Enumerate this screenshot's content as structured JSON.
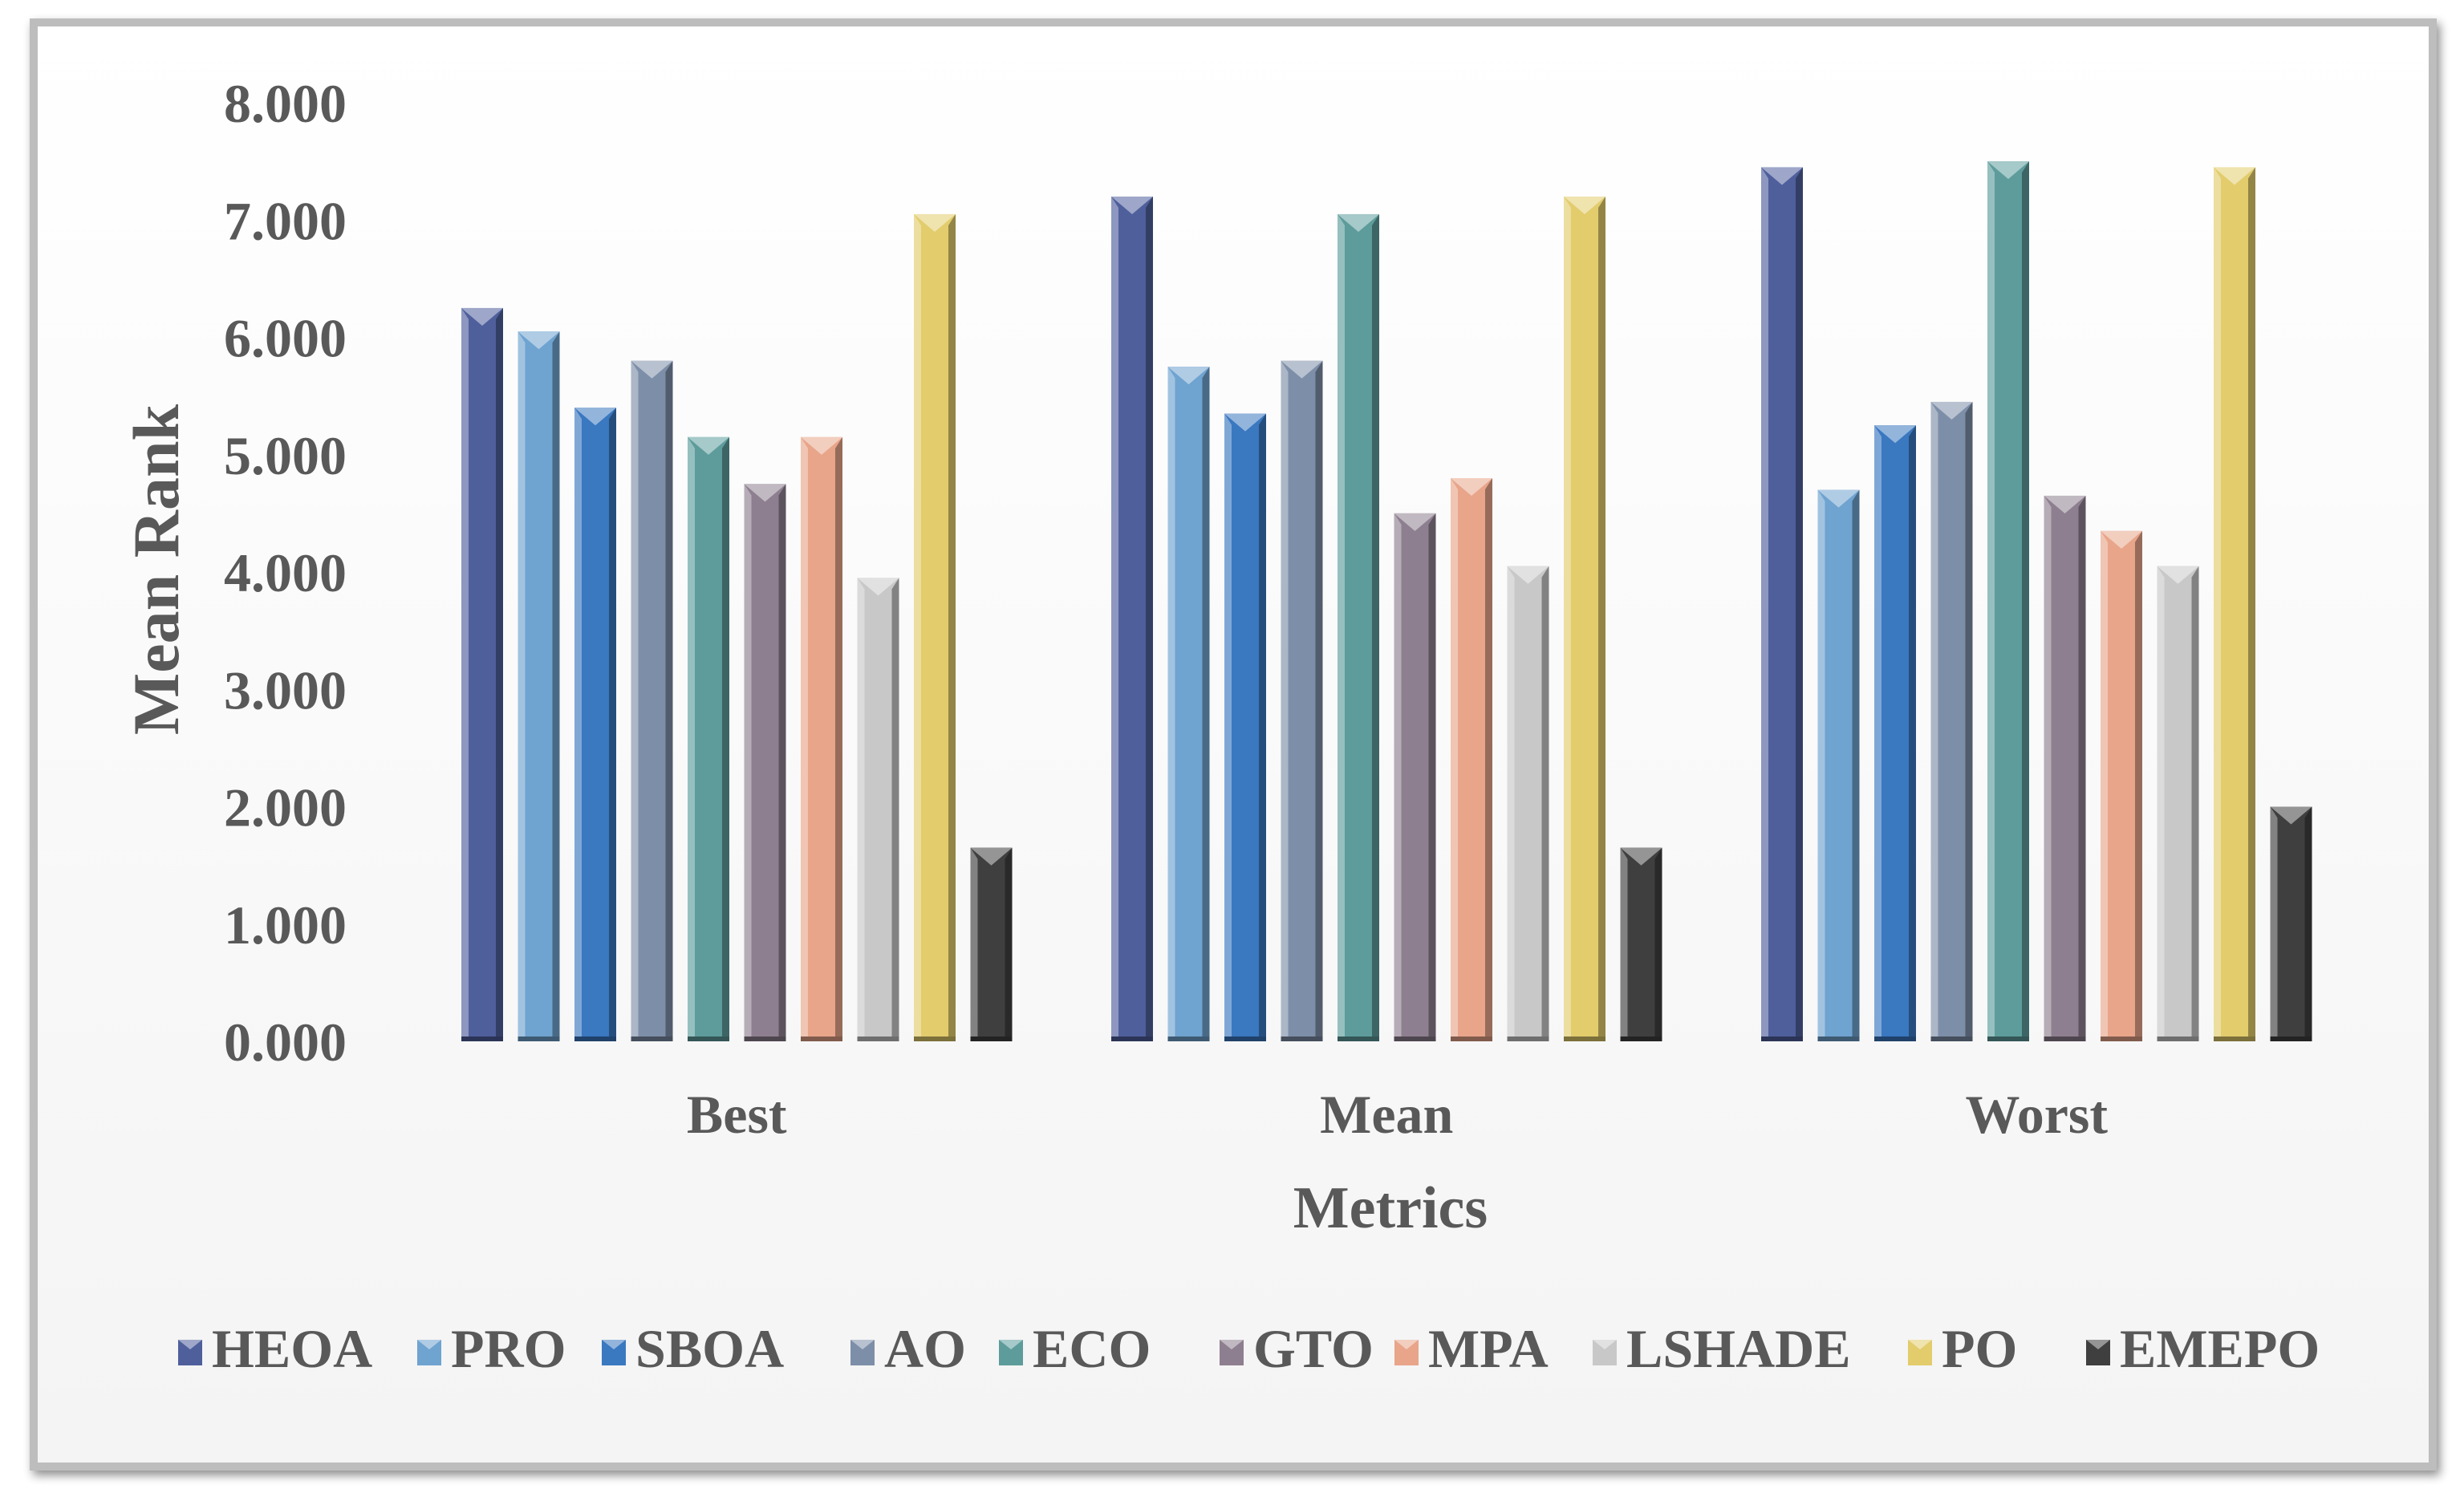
{
  "chart_data": {
    "type": "bar",
    "title": "",
    "xlabel": "Metrics",
    "ylabel": "Mean Rank",
    "ylim": [
      0,
      8
    ],
    "yticks": [
      "0.000",
      "1.000",
      "2.000",
      "3.000",
      "4.000",
      "5.000",
      "6.000",
      "7.000",
      "8.000"
    ],
    "categories": [
      "Best",
      "Mean",
      "Worst"
    ],
    "legend_position": "bottom",
    "series": [
      {
        "name": "HEOA",
        "color": "#4f5f9c",
        "values": [
          6.25,
          7.2,
          7.45
        ]
      },
      {
        "name": "PRO",
        "color": "#6fa3d0",
        "values": [
          6.05,
          5.75,
          4.7
        ]
      },
      {
        "name": "SBOA",
        "color": "#3a78c0",
        "values": [
          5.4,
          5.35,
          5.25
        ]
      },
      {
        "name": "AO",
        "color": "#7d8ea8",
        "values": [
          5.8,
          5.8,
          5.45
        ]
      },
      {
        "name": "ECO",
        "color": "#5e9c9c",
        "values": [
          5.15,
          7.05,
          7.5
        ]
      },
      {
        "name": "GTO",
        "color": "#8e7f90",
        "values": [
          4.75,
          4.5,
          4.65
        ]
      },
      {
        "name": "MPA",
        "color": "#e8a58a",
        "values": [
          5.15,
          4.8,
          4.35
        ]
      },
      {
        "name": "LSHADE",
        "color": "#c8c8c8",
        "values": [
          3.95,
          4.05,
          4.05
        ]
      },
      {
        "name": "PO",
        "color": "#e2cc6c",
        "values": [
          7.05,
          7.2,
          7.45
        ]
      },
      {
        "name": "EMEPO",
        "color": "#3f3f3f",
        "values": [
          1.65,
          1.65,
          2.0
        ]
      }
    ]
  }
}
